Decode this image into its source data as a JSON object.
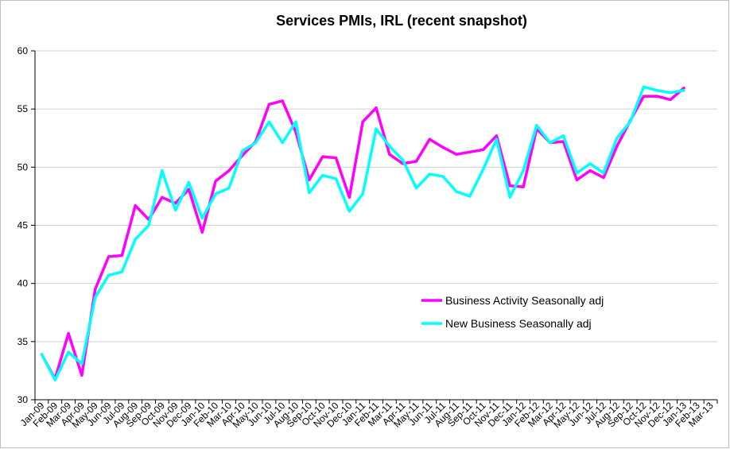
{
  "chart_data": {
    "type": "line",
    "title": "Services PMIs, IRL (recent snapshot)",
    "xlabel": "",
    "ylabel": "",
    "ylim": [
      30,
      60
    ],
    "yticks": [
      30,
      35,
      40,
      45,
      50,
      55,
      60
    ],
    "grid": true,
    "legend_position": "right-middle",
    "categories": [
      "Jan-09",
      "Feb-09",
      "Mar-09",
      "Apr-09",
      "May-09",
      "Jun-09",
      "Jul-09",
      "Aug-09",
      "Sep-09",
      "Oct-09",
      "Nov-09",
      "Dec-09",
      "Jan-10",
      "Feb-10",
      "Mar-10",
      "Apr-10",
      "May-10",
      "Jun-10",
      "Jul-10",
      "Aug-10",
      "Sep-10",
      "Oct-10",
      "Nov-10",
      "Dec-10",
      "Jan-11",
      "Feb-11",
      "Mar-11",
      "Apr-11",
      "May-11",
      "Jun-11",
      "Jul-11",
      "Aug-11",
      "Sep-11",
      "Oct-11",
      "Nov-11",
      "Dec-11",
      "Jan-12",
      "Feb-12",
      "Mar-12",
      "Apr-12",
      "May-12",
      "Jun-12",
      "Jul-12",
      "Aug-12",
      "Sep-12",
      "Oct-12",
      "Nov-12",
      "Dec-12",
      "Jan-13",
      "Feb-13",
      "Mar-13"
    ],
    "series": [
      {
        "name": "Business Activity Seasonally adj",
        "color": "#ff00ff",
        "values": [
          33.9,
          31.8,
          35.7,
          32.1,
          39.5,
          42.3,
          42.4,
          46.7,
          45.5,
          47.4,
          46.9,
          48.1,
          44.4,
          48.8,
          49.7,
          51.0,
          52.2,
          55.4,
          55.7,
          53.0,
          48.9,
          50.9,
          50.8,
          47.4,
          53.9,
          55.1,
          51.1,
          50.3,
          50.5,
          52.4,
          51.7,
          51.1,
          51.3,
          51.5,
          52.7,
          48.4,
          48.3,
          53.3,
          52.1,
          52.2,
          48.9,
          49.7,
          49.1,
          51.8,
          54.0,
          56.1,
          56.1,
          55.8,
          56.8,
          null,
          null
        ]
      },
      {
        "name": "New Business Seasonally adj",
        "color": "#00ffff",
        "values": [
          33.9,
          31.7,
          34.1,
          33.1,
          38.8,
          40.7,
          41.0,
          43.8,
          45.0,
          49.7,
          46.3,
          48.7,
          45.6,
          47.7,
          48.2,
          51.4,
          52.1,
          53.9,
          52.1,
          53.9,
          47.8,
          49.3,
          49.0,
          46.2,
          47.7,
          53.3,
          51.8,
          50.6,
          48.2,
          49.4,
          49.2,
          47.9,
          47.5,
          49.8,
          52.4,
          47.4,
          49.7,
          53.6,
          52.1,
          52.7,
          49.5,
          50.3,
          49.5,
          52.5,
          53.9,
          56.9,
          56.6,
          56.4,
          56.6,
          null,
          null
        ]
      }
    ]
  }
}
